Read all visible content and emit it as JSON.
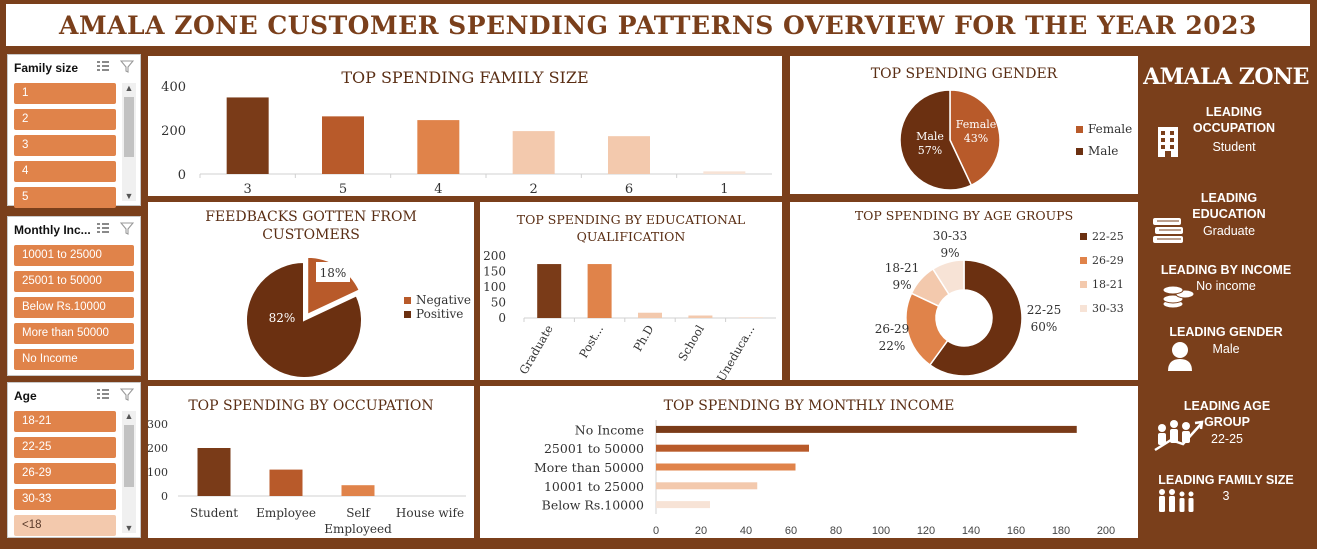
{
  "header": {
    "title": "AMALA ZONE CUSTOMER SPENDING PATTERNS OVERVIEW FOR THE YEAR 2023"
  },
  "slicers": {
    "family": {
      "title": "Family size",
      "items": [
        "1",
        "2",
        "3",
        "4",
        "5"
      ]
    },
    "income": {
      "title": "Monthly Inc...",
      "items": [
        "10001 to 25000",
        "25001 to 50000",
        "Below Rs.10000",
        "More than 50000",
        "No Income"
      ]
    },
    "age": {
      "title": "Age",
      "items": [
        "18-21",
        "22-25",
        "26-29",
        "30-33",
        "<18"
      ]
    }
  },
  "icons": {
    "multiselect": "multi-select-icon",
    "clear_filter": "clear-filter-icon",
    "scroll_up": "▲",
    "scroll_down": "▼"
  },
  "colors": {
    "dark": "#7a3f1b",
    "darkbrown": "#6b3011",
    "mid": "#b85a2a",
    "orange": "#e0834a",
    "peach": "#f3c9ad",
    "pale": "#f7e3d6"
  },
  "chart_data": [
    {
      "id": "family",
      "type": "bar",
      "title": "TOP SPENDING FAMILY SIZE",
      "categories": [
        "3",
        "5",
        "4",
        "2",
        "6",
        "1"
      ],
      "values": [
        348,
        262,
        245,
        195,
        172,
        12
      ],
      "yticks": [
        "0",
        "200",
        "400"
      ],
      "ylim": [
        0,
        400
      ]
    },
    {
      "id": "gender",
      "type": "pie",
      "title": "TOP SPENDING GENDER",
      "labels": [
        "Female",
        "Male"
      ],
      "values": [
        43,
        57
      ],
      "slice_labels": [
        [
          "Female",
          "43%"
        ],
        [
          "Male",
          "57%"
        ]
      ],
      "legend": [
        "Female",
        "Male"
      ]
    },
    {
      "id": "feedback",
      "type": "pie",
      "title": "FEEDBACKS GOTTEN FROM CUSTOMERS",
      "labels": [
        "Negative",
        "Positive"
      ],
      "values": [
        18,
        82
      ],
      "slice_labels": [
        "18%",
        "82%"
      ],
      "legend": [
        "Negative",
        "Positive"
      ]
    },
    {
      "id": "education",
      "type": "bar",
      "title": "TOP SPENDING BY EDUCATIONAL QUALIFICATION",
      "categories": [
        "Graduate",
        "Post...",
        "Ph.D",
        "School",
        "Uneduca..."
      ],
      "values": [
        174,
        174,
        17,
        8,
        1
      ],
      "yticks": [
        "0",
        "50",
        "100",
        "150",
        "200"
      ],
      "ylim": [
        0,
        200
      ]
    },
    {
      "id": "age",
      "type": "pie",
      "title": "TOP SPENDING BY AGE GROUPS",
      "labels": [
        "22-25",
        "26-29",
        "18-21",
        "30-33"
      ],
      "values": [
        60,
        22,
        9,
        9
      ],
      "slice_labels": [
        [
          "22-25",
          "60%"
        ],
        [
          "26-29",
          "22%"
        ],
        [
          "18-21",
          "9%"
        ],
        [
          "30-33",
          "9%"
        ]
      ],
      "legend": [
        "22-25",
        "26-29",
        "18-21",
        "30-33"
      ]
    },
    {
      "id": "occupation",
      "type": "bar",
      "title": "TOP SPENDING BY OCCUPATION",
      "categories": [
        "Student",
        "Employee",
        "Self Employeed",
        "House wife"
      ],
      "cat_lines": [
        [
          "Student"
        ],
        [
          "Employee"
        ],
        [
          "Self",
          "Employeed"
        ],
        [
          "House wife"
        ]
      ],
      "values": [
        200,
        110,
        45,
        0
      ],
      "yticks": [
        "0",
        "100",
        "200",
        "300"
      ],
      "ylim": [
        0,
        300
      ]
    },
    {
      "id": "income",
      "type": "bar",
      "orientation": "horizontal",
      "title": "TOP SPENDING BY MONTHLY INCOME",
      "categories": [
        "No Income",
        "25001 to 50000",
        "More than 50000",
        "10001 to 25000",
        "Below Rs.10000"
      ],
      "values": [
        187,
        68,
        62,
        45,
        24
      ],
      "xticks": [
        "0",
        "20",
        "40",
        "60",
        "80",
        "100",
        "120",
        "140",
        "160",
        "180",
        "200"
      ],
      "xlim": [
        0,
        200
      ]
    }
  ],
  "summary": {
    "brand": "AMALA ZONE",
    "kpis": [
      {
        "title": "LEADING OCCUPATION",
        "value": "Student",
        "icon": "building-icon"
      },
      {
        "title": "LEADING EDUCATION",
        "value": "Graduate",
        "icon": "books-icon"
      },
      {
        "title": "LEADING BY INCOME",
        "value": "No income",
        "icon": "coins-icon"
      },
      {
        "title": "LEADING GENDER",
        "value": "Male",
        "icon": "user-icon"
      },
      {
        "title": "LEADING AGE GROUP",
        "value": "22-25",
        "icon": "people-growth-icon"
      },
      {
        "title": "LEADING FAMILY SIZE",
        "value": "3",
        "icon": "family-icon"
      }
    ]
  }
}
